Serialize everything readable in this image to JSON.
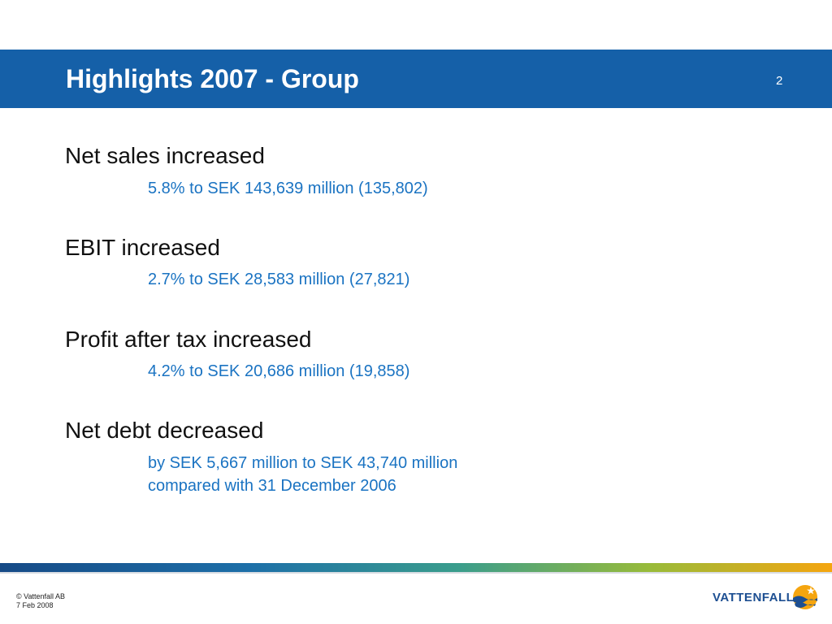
{
  "slide": {
    "title": "Highlights 2007 - Group",
    "page_number": "2"
  },
  "highlights": [
    {
      "heading": "Net sales increased",
      "details": [
        "5.8% to SEK 143,639 million (135,802)"
      ]
    },
    {
      "heading": "EBIT increased",
      "details": [
        "2.7% to SEK 28,583 million (27,821)"
      ]
    },
    {
      "heading": "Profit after tax increased",
      "details": [
        "4.2% to SEK 20,686 million  (19,858)"
      ]
    },
    {
      "heading": "Net debt decreased",
      "details": [
        "by SEK 5,667 million to SEK 43,740 million",
        "compared with 31 December 2006"
      ]
    }
  ],
  "footer": {
    "copyright": "© Vattenfall AB",
    "date": "7 Feb 2008",
    "logo_text": "VATTENFALL",
    "logo_icon": "vattenfall-sun-wave-icon"
  },
  "colors": {
    "header": "#1560a8",
    "detail_text": "#1a73c2",
    "logo_blue": "#1d4f92",
    "logo_orange": "#f5a50f"
  }
}
